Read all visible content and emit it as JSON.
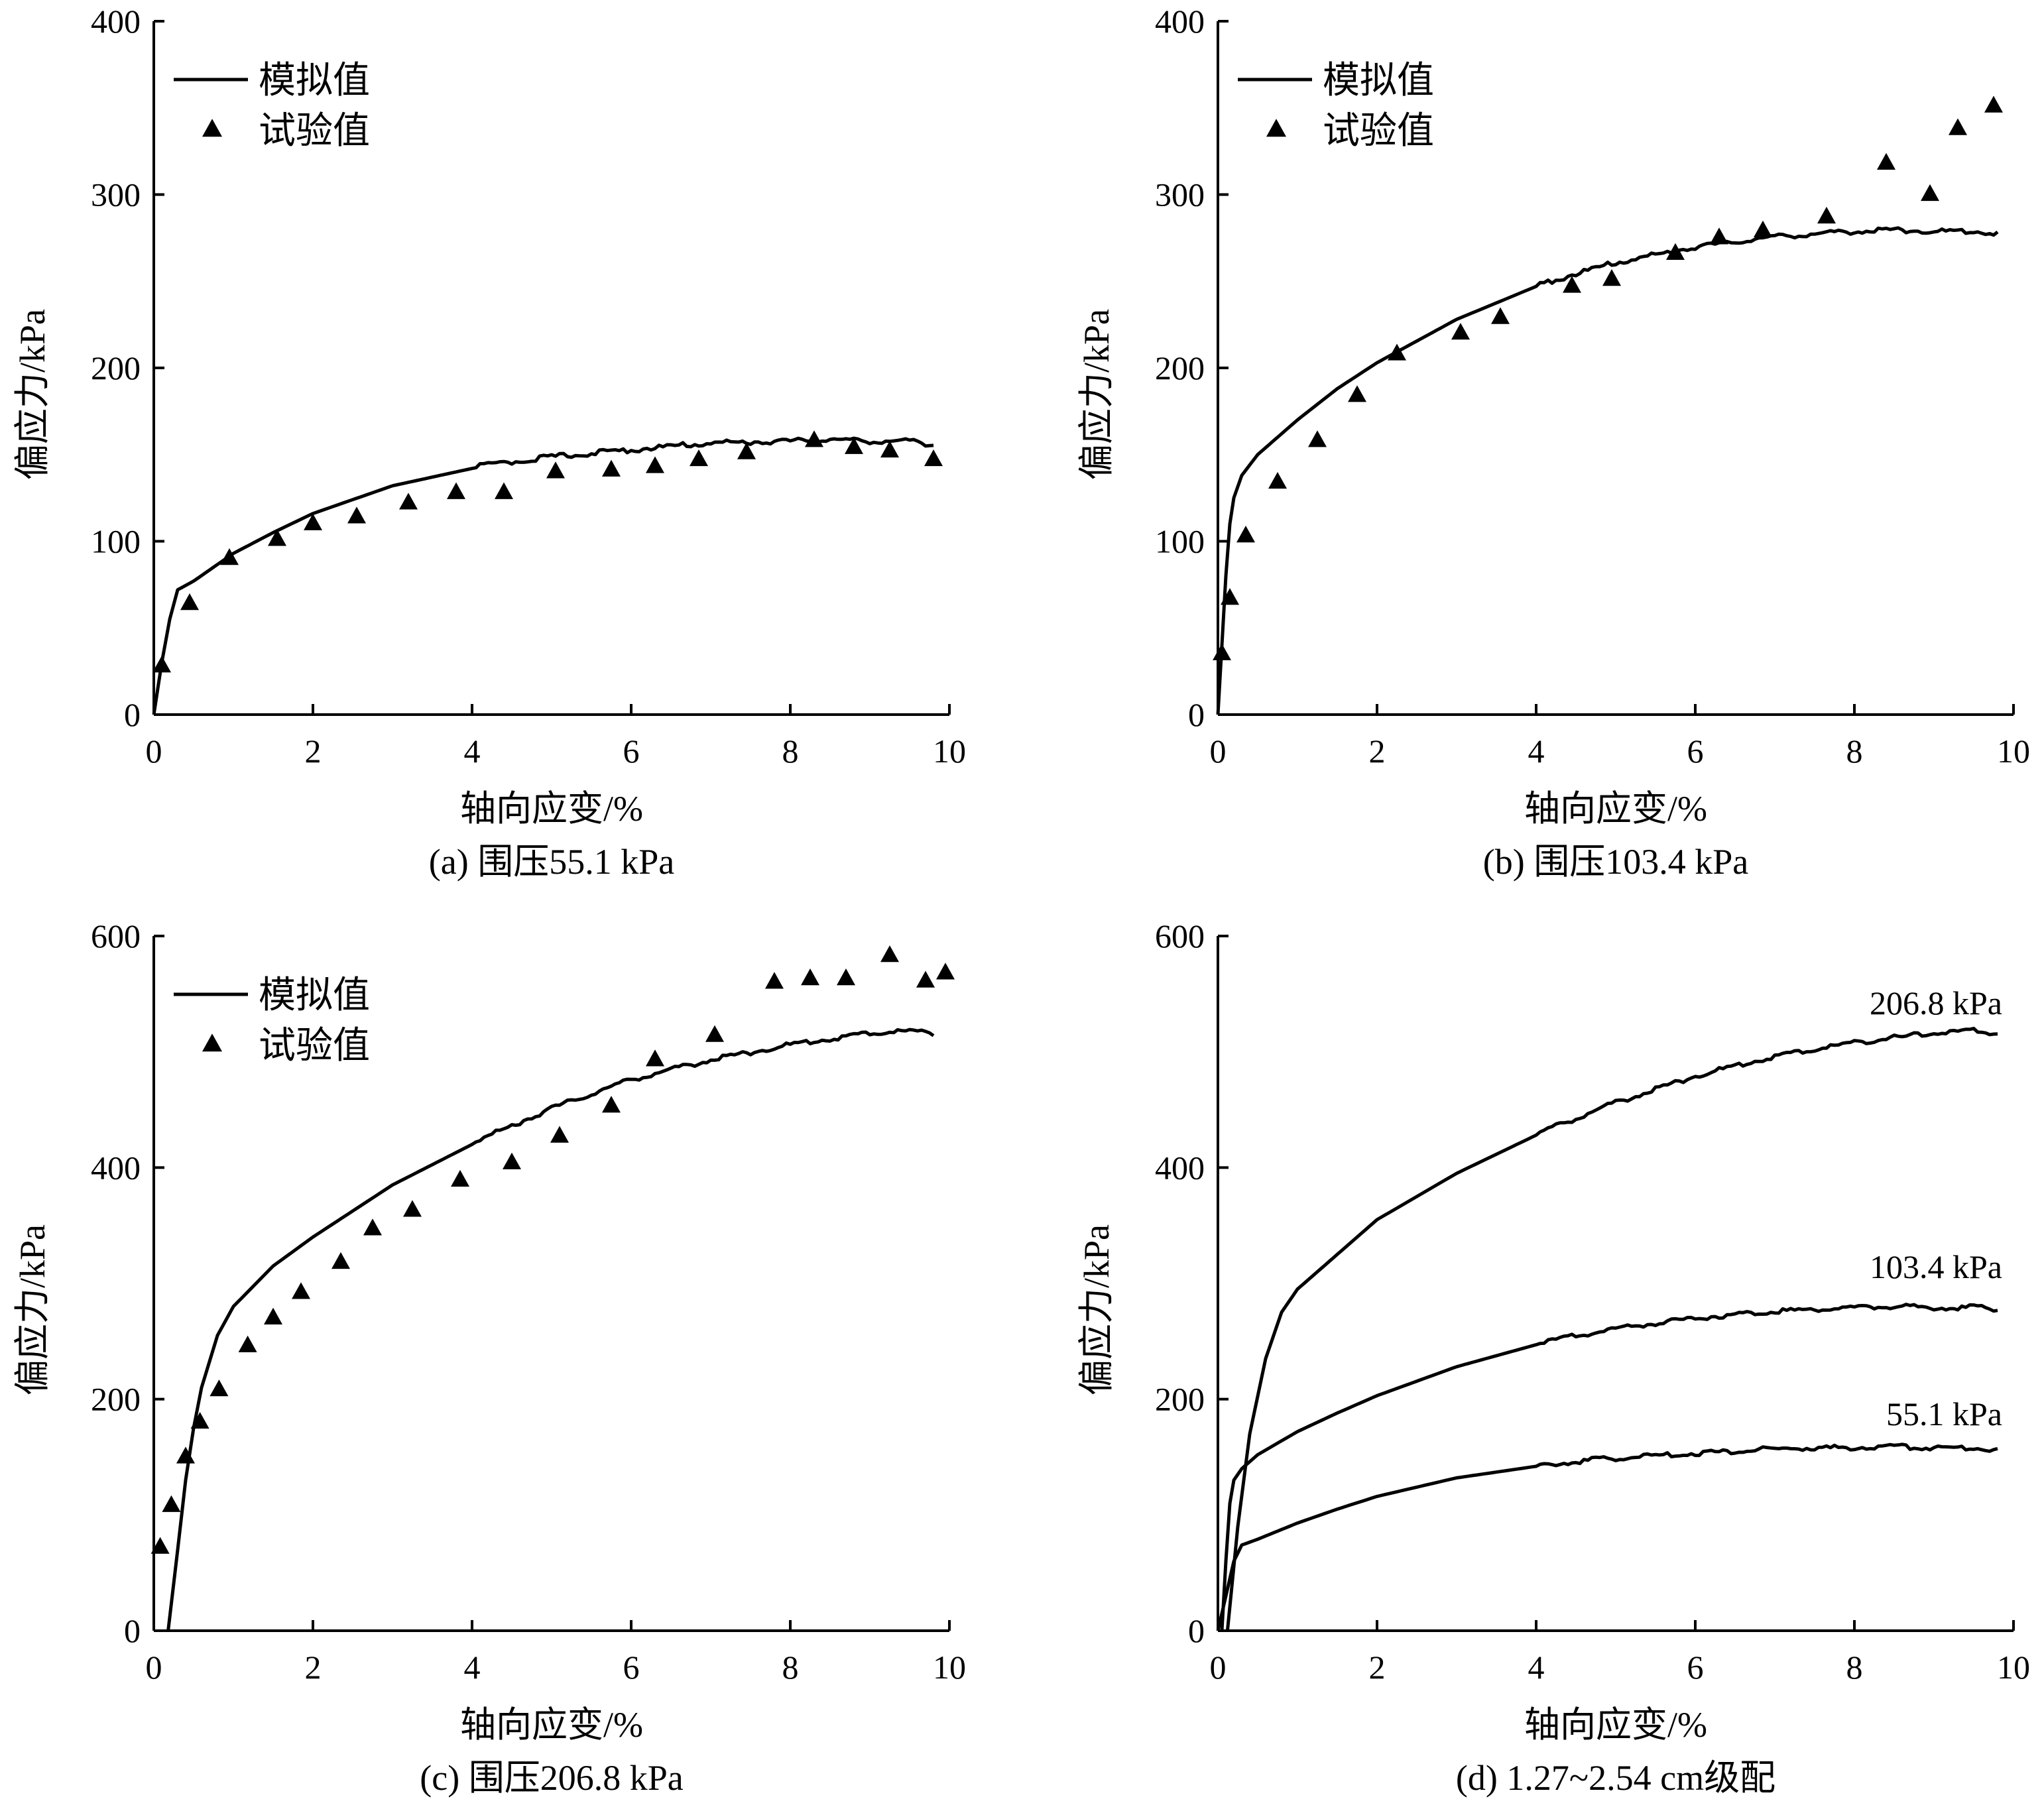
{
  "chart_data": [
    {
      "id": "a",
      "type": "line",
      "caption": "(a) 围压55.1 kPa",
      "xlabel": "轴向应变/%",
      "ylabel": "偏应力/kPa",
      "xlim": [
        0,
        10
      ],
      "ylim": [
        0,
        400
      ],
      "xticks": [
        0,
        2,
        4,
        6,
        8,
        10
      ],
      "yticks": [
        0,
        100,
        200,
        300,
        400
      ],
      "legend": {
        "position": "top-left",
        "entries": [
          {
            "label": "模拟值",
            "marker": "line"
          },
          {
            "label": "试验值",
            "marker": "triangle"
          }
        ]
      },
      "series": [
        {
          "name": "模拟值",
          "style": "line",
          "x": [
            0,
            0.1,
            0.2,
            0.3,
            0.5,
            1,
            1.5,
            2,
            3,
            4,
            5,
            6,
            7,
            8,
            8.5,
            9,
            9.5,
            9.8
          ],
          "y": [
            0,
            30,
            55,
            72,
            77,
            93,
            105,
            116,
            132,
            142,
            148,
            152,
            156,
            157,
            158,
            157,
            157,
            155
          ]
        },
        {
          "name": "试验值",
          "style": "triangle",
          "x": [
            0.1,
            0.45,
            0.95,
            1.55,
            2.0,
            2.55,
            3.2,
            3.8,
            4.4,
            5.05,
            5.75,
            6.3,
            6.85,
            7.45,
            8.3,
            8.8,
            9.25,
            9.8
          ],
          "y": [
            28,
            64,
            90,
            101,
            110,
            114,
            122,
            128,
            128,
            140,
            141,
            143,
            147,
            151,
            158,
            154,
            152,
            147
          ]
        }
      ]
    },
    {
      "id": "b",
      "type": "line",
      "caption": "(b) 围压103.4 kPa",
      "xlabel": "轴向应变/%",
      "ylabel": "偏应力/kPa",
      "xlim": [
        0,
        10
      ],
      "ylim": [
        0,
        400
      ],
      "xticks": [
        0,
        2,
        4,
        6,
        8,
        10
      ],
      "yticks": [
        0,
        100,
        200,
        300,
        400
      ],
      "legend": {
        "position": "top-left",
        "entries": [
          {
            "label": "模拟值",
            "marker": "line"
          },
          {
            "label": "试验值",
            "marker": "triangle"
          }
        ]
      },
      "series": [
        {
          "name": "模拟值",
          "style": "line",
          "x": [
            0,
            0.05,
            0.1,
            0.15,
            0.2,
            0.3,
            0.5,
            1,
            1.5,
            2,
            3,
            4,
            5,
            6,
            7,
            8,
            8.5,
            9,
            9.5,
            9.8
          ],
          "y": [
            0,
            40,
            80,
            110,
            125,
            138,
            150,
            170,
            188,
            203,
            228,
            247,
            260,
            269,
            275,
            278,
            279,
            278,
            278,
            277
          ]
        },
        {
          "name": "试验值",
          "style": "triangle",
          "x": [
            0.05,
            0.15,
            0.35,
            0.75,
            1.25,
            1.75,
            2.25,
            3.05,
            3.55,
            4.45,
            4.95,
            5.75,
            6.3,
            6.85,
            7.65,
            8.4,
            8.95,
            9.3,
            9.75
          ],
          "y": [
            35,
            67,
            103,
            134,
            158,
            184,
            208,
            220,
            229,
            247,
            251,
            266,
            275,
            279,
            287,
            318,
            300,
            338,
            351
          ]
        }
      ]
    },
    {
      "id": "c",
      "type": "line",
      "caption": "(c) 围压206.8 kPa",
      "xlabel": "轴向应变/%",
      "ylabel": "偏应力/kPa",
      "xlim": [
        0,
        10
      ],
      "ylim": [
        0,
        600
      ],
      "xticks": [
        0,
        2,
        4,
        6,
        8,
        10
      ],
      "yticks": [
        0,
        200,
        400,
        600
      ],
      "legend": {
        "position": "top-left",
        "entries": [
          {
            "label": "模拟值",
            "marker": "line"
          },
          {
            "label": "试验值",
            "marker": "triangle"
          }
        ]
      },
      "series": [
        {
          "name": "模拟值",
          "style": "line",
          "x": [
            0.18,
            0.3,
            0.4,
            0.5,
            0.6,
            0.8,
            1,
            1.5,
            2,
            3,
            4,
            5,
            6,
            7,
            8,
            9,
            9.5,
            9.8
          ],
          "y": [
            0,
            70,
            130,
            175,
            210,
            255,
            280,
            315,
            340,
            385,
            420,
            450,
            475,
            492,
            505,
            515,
            517,
            515
          ]
        },
        {
          "name": "试验值",
          "style": "triangle",
          "x": [
            0.08,
            0.22,
            0.4,
            0.58,
            0.82,
            1.18,
            1.5,
            1.85,
            2.35,
            2.75,
            3.25,
            3.85,
            4.5,
            5.1,
            5.75,
            6.3,
            7.05,
            7.8,
            8.25,
            8.7,
            9.25,
            9.7,
            9.95
          ],
          "y": [
            72,
            108,
            150,
            180,
            208,
            246,
            270,
            292,
            318,
            347,
            363,
            389,
            404,
            427,
            453,
            493,
            514,
            560,
            563,
            563,
            583,
            561,
            568
          ]
        }
      ]
    },
    {
      "id": "d",
      "type": "line",
      "caption": "(d) 1.27~2.54 cm级配",
      "xlabel": "轴向应变/%",
      "ylabel": "偏应力/kPa",
      "xlim": [
        0,
        10
      ],
      "ylim": [
        0,
        600
      ],
      "xticks": [
        0,
        2,
        4,
        6,
        8,
        10
      ],
      "yticks": [
        0,
        200,
        400,
        600
      ],
      "series": [
        {
          "name": "206.8 kPa",
          "style": "line",
          "x": [
            0.12,
            0.25,
            0.4,
            0.6,
            0.8,
            1,
            1.5,
            2,
            3,
            4,
            5,
            6,
            7,
            8,
            9,
            9.5,
            9.8
          ],
          "y": [
            0,
            90,
            170,
            235,
            275,
            295,
            325,
            355,
            395,
            428,
            455,
            478,
            495,
            507,
            515,
            517,
            515
          ]
        },
        {
          "name": "103.4 kPa",
          "style": "line",
          "x": [
            0.05,
            0.1,
            0.15,
            0.2,
            0.3,
            0.5,
            1,
            1.5,
            2,
            3,
            4,
            5,
            6,
            7,
            8,
            8.5,
            9,
            9.5,
            9.8
          ],
          "y": [
            0,
            60,
            110,
            130,
            140,
            152,
            172,
            188,
            203,
            228,
            247,
            260,
            269,
            275,
            278,
            279,
            278,
            278,
            277
          ]
        },
        {
          "name": "55.1 kPa",
          "style": "line",
          "x": [
            0,
            0.1,
            0.2,
            0.3,
            0.5,
            1,
            1.5,
            2,
            3,
            4,
            5,
            6,
            7,
            8,
            8.5,
            9,
            9.5,
            9.8
          ],
          "y": [
            0,
            30,
            60,
            74,
            79,
            93,
            105,
            116,
            132,
            142,
            148,
            152,
            156,
            157,
            158,
            157,
            157,
            155
          ]
        }
      ],
      "curve_labels": [
        "206.8 kPa",
        "103.4 kPa",
        "55.1 kPa"
      ]
    }
  ]
}
